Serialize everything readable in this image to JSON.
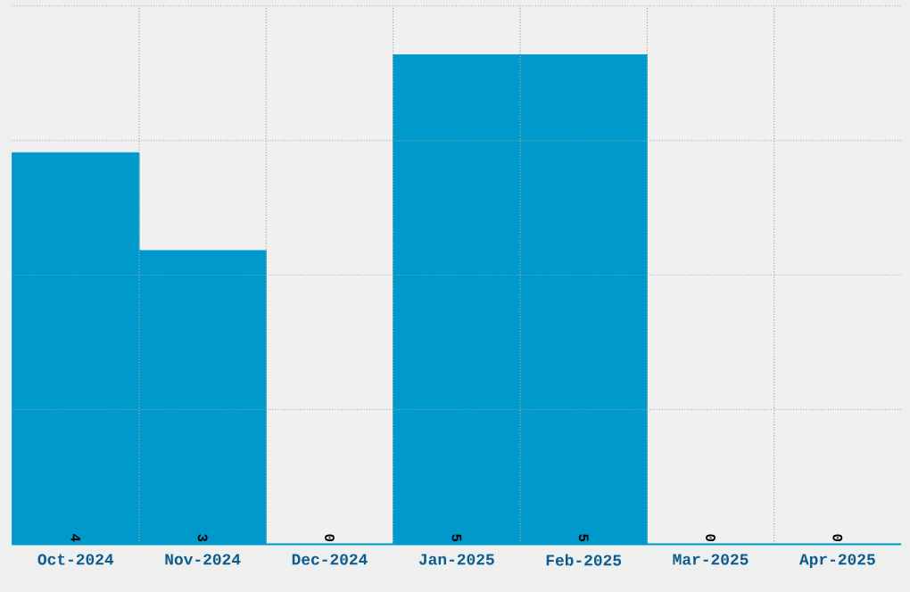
{
  "chart_data": {
    "type": "bar",
    "categories": [
      "Oct-2024",
      "Nov-2024",
      "Dec-2024",
      "Jan-2025",
      "Feb-2025",
      "Mar-2025",
      "Apr-2025"
    ],
    "values": [
      4,
      3,
      0,
      5,
      5,
      0,
      0
    ],
    "color": "#0099cc",
    "ylim": [
      0,
      5.5
    ],
    "yticks": [
      {
        "value": 1.375,
        "label": null
      },
      {
        "value": 2.75,
        "label": null
      },
      {
        "value": 4.125,
        "label": null
      },
      {
        "value": 5.5,
        "label": null
      }
    ],
    "tick_labels": "x",
    "grid": true,
    "data_labels": true
  }
}
